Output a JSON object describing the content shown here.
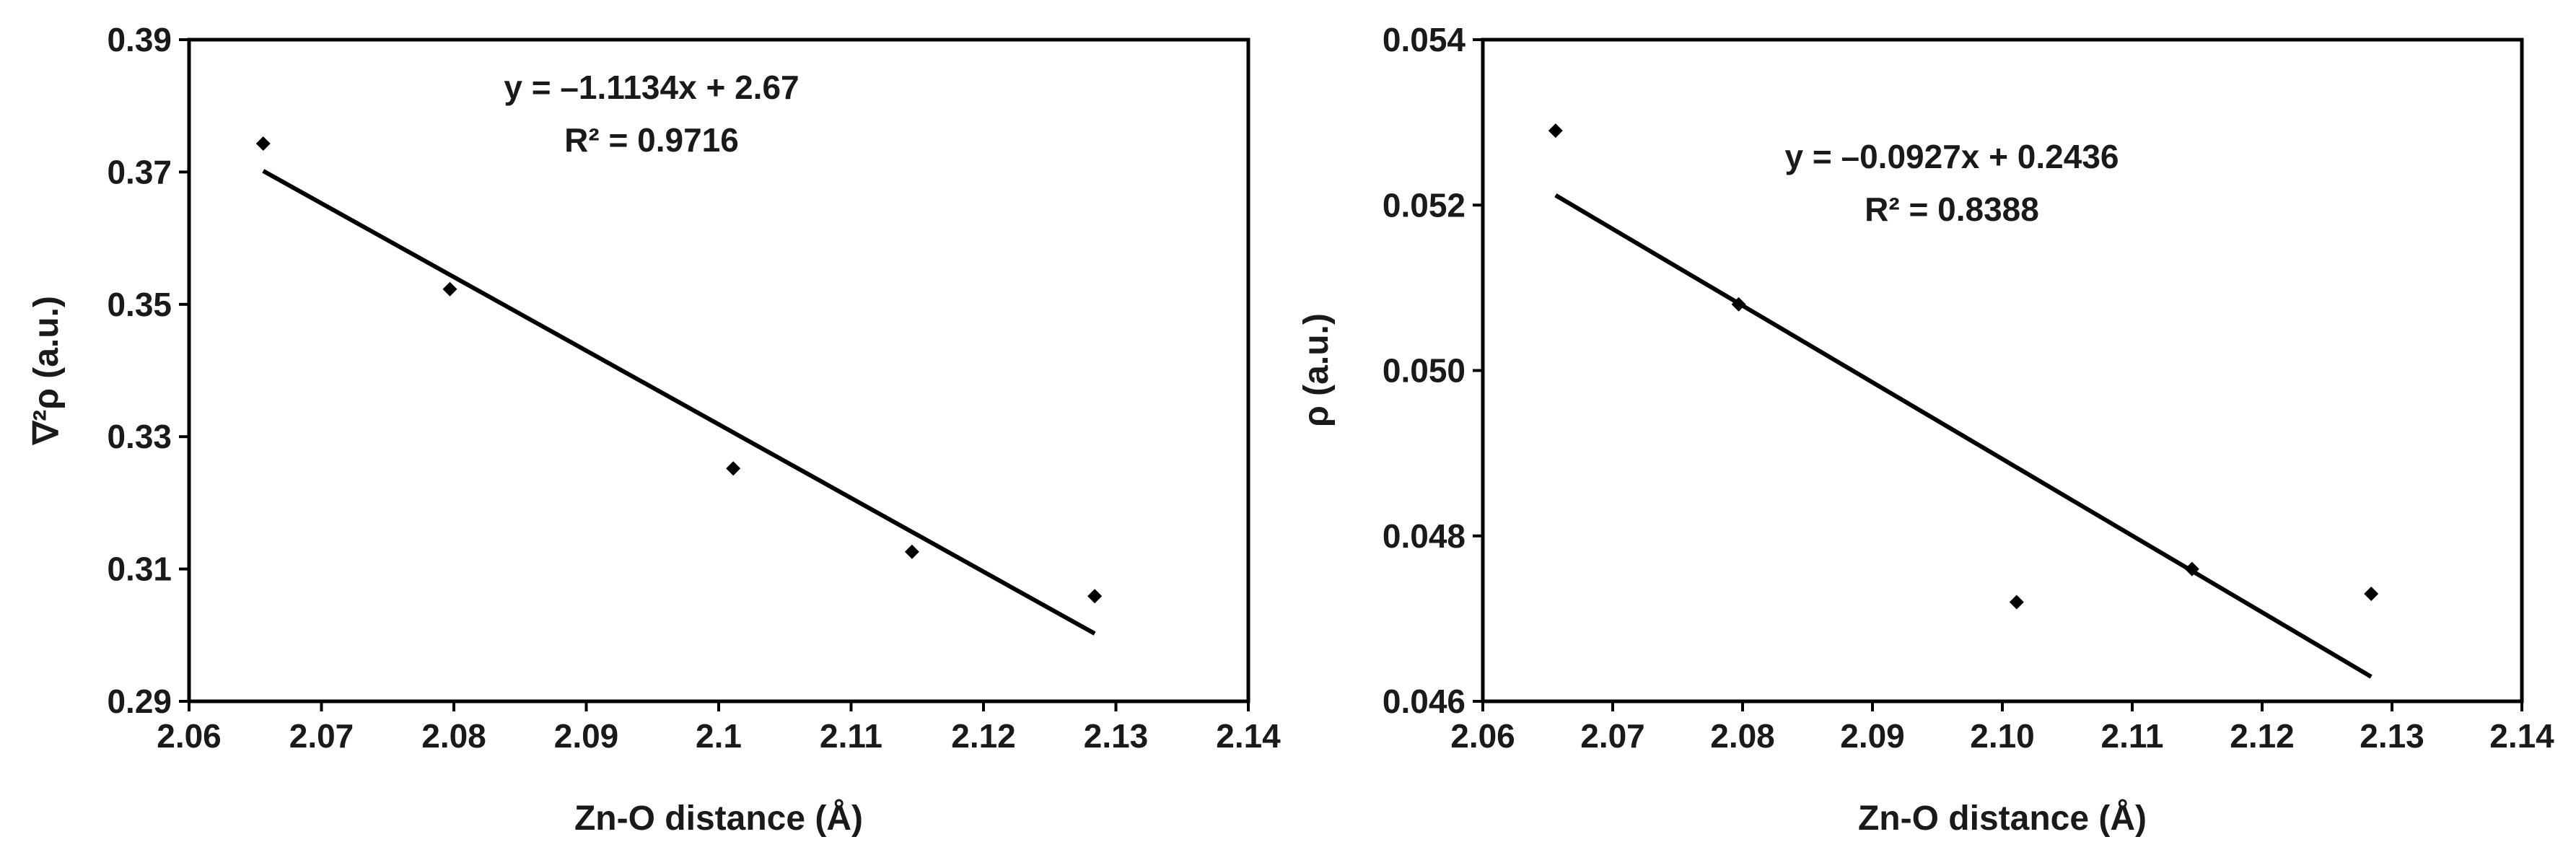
{
  "chart_data": [
    {
      "type": "scatter",
      "xlabel": "Zn-O distance (Å)",
      "ylabel": "∇²ρ (a.u.)",
      "xlim": [
        2.06,
        2.14
      ],
      "ylim": [
        0.29,
        0.39
      ],
      "x_ticks": [
        "2.06",
        "2.07",
        "2.08",
        "2.09",
        "2.1",
        "2.11",
        "2.12",
        "2.13",
        "2.14"
      ],
      "y_ticks": [
        "0.29",
        "0.31",
        "0.33",
        "0.35",
        "0.37",
        "0.39"
      ],
      "series": [
        {
          "x": [
            2.0656,
            2.0797,
            2.1011,
            2.1146,
            2.1284
          ],
          "y": [
            0.3743,
            0.3523,
            0.3252,
            0.3126,
            0.3059
          ]
        }
      ],
      "trendline": {
        "slope": -1.1134,
        "intercept": 2.67,
        "x_range": [
          2.0656,
          2.1284
        ]
      },
      "equation": "y = –1.1134x + 2.67",
      "r_squared": "R² = 0.9716",
      "grid": false,
      "legend": "none"
    },
    {
      "type": "scatter",
      "xlabel": "Zn-O distance (Å)",
      "ylabel": "ρ (a.u.)",
      "xlim": [
        2.06,
        2.14
      ],
      "ylim": [
        0.046,
        0.054
      ],
      "x_ticks": [
        "2.06",
        "2.07",
        "2.08",
        "2.09",
        "2.10",
        "2.11",
        "2.12",
        "2.13",
        "2.14"
      ],
      "y_ticks": [
        "0.046",
        "0.048",
        "0.050",
        "0.052",
        "0.054"
      ],
      "series": [
        {
          "x": [
            2.0656,
            2.0797,
            2.1011,
            2.1146,
            2.1284
          ],
          "y": [
            0.0529,
            0.0508,
            0.0472,
            0.0476,
            0.0473
          ]
        }
      ],
      "trendline": {
        "slope": -0.0927,
        "intercept": 0.2436,
        "x_range": [
          2.0656,
          2.1284
        ]
      },
      "equation": "y = –0.0927x + 0.2436",
      "r_squared": "R² = 0.8388",
      "grid": false,
      "legend": "none"
    }
  ]
}
